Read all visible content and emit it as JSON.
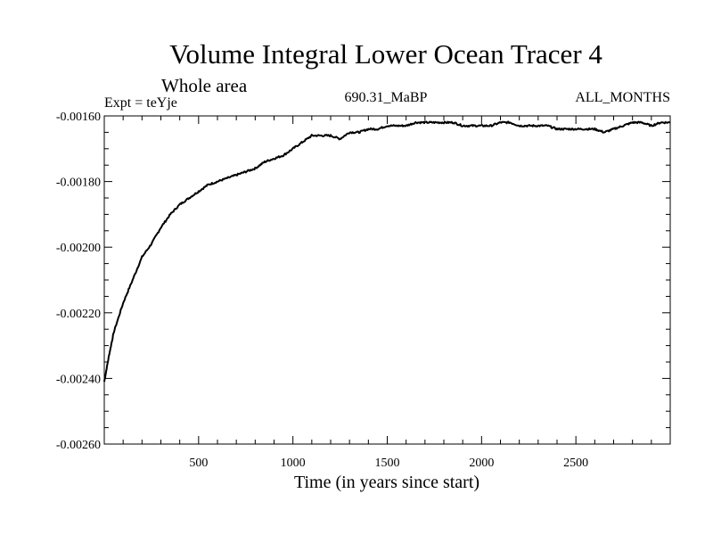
{
  "chart_data": {
    "type": "line",
    "title": "Volume Integral Lower Ocean Tracer 4",
    "subtitle": "Whole area",
    "experiment_label": "Expt = teYje",
    "center_label": "690.31_MaBP",
    "right_label": "ALL_MONTHS",
    "xlabel": "Time (in years since start)",
    "ylabel": "",
    "xlim": [
      0,
      3000
    ],
    "ylim": [
      -0.0026,
      -0.0016
    ],
    "x_ticks": [
      500,
      1000,
      1500,
      2000,
      2500
    ],
    "x_tick_labels": [
      "500",
      "1000",
      "1500",
      "2000",
      "2500"
    ],
    "y_ticks": [
      -0.0016,
      -0.0018,
      -0.002,
      -0.0022,
      -0.0024,
      -0.0026
    ],
    "y_tick_labels": [
      "-0.00160",
      "-0.00180",
      "-0.00200",
      "-0.00220",
      "-0.00240",
      "-0.00260"
    ],
    "grid": false,
    "series": [
      {
        "name": "Lower Ocean Tracer 4",
        "color": "#000000",
        "x": [
          0,
          25,
          50,
          100,
          150,
          200,
          250,
          300,
          350,
          400,
          450,
          500,
          550,
          600,
          650,
          700,
          750,
          800,
          850,
          900,
          950,
          1000,
          1050,
          1100,
          1150,
          1200,
          1250,
          1300,
          1350,
          1400,
          1450,
          1500,
          1550,
          1600,
          1650,
          1700,
          1750,
          1800,
          1850,
          1900,
          1950,
          2000,
          2050,
          2100,
          2150,
          2200,
          2250,
          2300,
          2350,
          2400,
          2450,
          2500,
          2550,
          2600,
          2650,
          2700,
          2750,
          2800,
          2850,
          2900,
          2950,
          3000
        ],
        "values": [
          -0.00241,
          -0.00233,
          -0.00226,
          -0.00217,
          -0.0021,
          -0.00203,
          -0.00199,
          -0.00194,
          -0.0019,
          -0.00187,
          -0.00185,
          -0.00183,
          -0.00181,
          -0.0018,
          -0.00179,
          -0.00178,
          -0.00177,
          -0.00176,
          -0.00174,
          -0.00173,
          -0.00172,
          -0.0017,
          -0.00168,
          -0.00166,
          -0.00166,
          -0.00166,
          -0.00167,
          -0.00165,
          -0.00165,
          -0.00164,
          -0.00164,
          -0.00163,
          -0.00163,
          -0.00163,
          -0.00162,
          -0.00162,
          -0.00162,
          -0.00162,
          -0.00162,
          -0.00163,
          -0.00163,
          -0.00163,
          -0.00163,
          -0.00162,
          -0.00162,
          -0.00163,
          -0.00163,
          -0.00163,
          -0.00163,
          -0.00164,
          -0.00164,
          -0.00164,
          -0.00164,
          -0.00164,
          -0.00165,
          -0.00164,
          -0.00163,
          -0.00162,
          -0.00162,
          -0.00163,
          -0.00162,
          -0.00162
        ]
      }
    ]
  }
}
